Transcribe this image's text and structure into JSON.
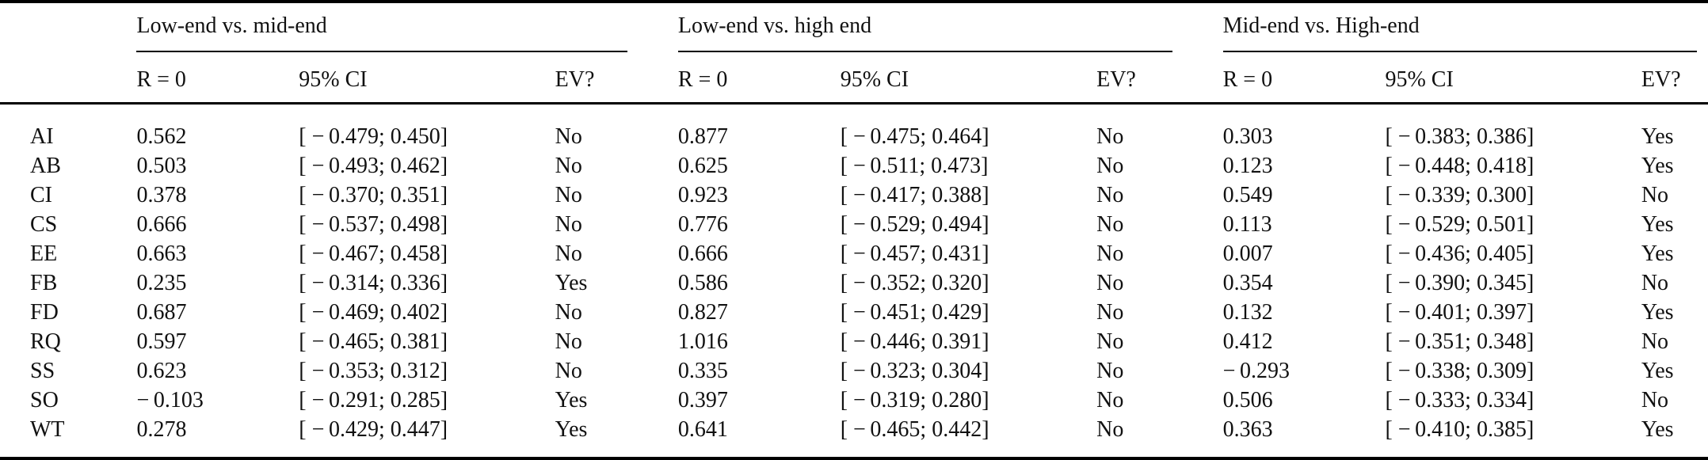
{
  "page": {
    "background_color": "#ffffff",
    "text_color": "#111111",
    "rule_color": "#000000"
  },
  "table": {
    "stub_header": "",
    "groups": [
      {
        "title": "Low-end vs. mid-end",
        "columns": [
          "R = 0",
          "95% CI",
          "EV?"
        ]
      },
      {
        "title": "Low-end vs. high end",
        "columns": [
          "R = 0",
          "95% CI",
          "EV?"
        ]
      },
      {
        "title": "Mid-end vs. High-end",
        "columns": [
          "R = 0",
          "95% CI",
          "EV?"
        ]
      }
    ],
    "rows": [
      {
        "label": "AI",
        "cells": [
          "0.562",
          "[ − 0.479; 0.450]",
          "No",
          "0.877",
          "[ − 0.475; 0.464]",
          "No",
          "0.303",
          "[ − 0.383; 0.386]",
          "Yes"
        ]
      },
      {
        "label": "AB",
        "cells": [
          "0.503",
          "[ − 0.493; 0.462]",
          "No",
          "0.625",
          "[ − 0.511; 0.473]",
          "No",
          "0.123",
          "[ − 0.448; 0.418]",
          "Yes"
        ]
      },
      {
        "label": "CI",
        "cells": [
          "0.378",
          "[ − 0.370; 0.351]",
          "No",
          "0.923",
          "[ − 0.417; 0.388]",
          "No",
          "0.549",
          "[ − 0.339; 0.300]",
          "No"
        ]
      },
      {
        "label": "CS",
        "cells": [
          "0.666",
          "[ − 0.537; 0.498]",
          "No",
          "0.776",
          "[ − 0.529; 0.494]",
          "No",
          "0.113",
          "[ − 0.529; 0.501]",
          "Yes"
        ]
      },
      {
        "label": "EE",
        "cells": [
          "0.663",
          "[ − 0.467; 0.458]",
          "No",
          "0.666",
          "[ − 0.457; 0.431]",
          "No",
          "0.007",
          "[ − 0.436; 0.405]",
          "Yes"
        ]
      },
      {
        "label": "FB",
        "cells": [
          "0.235",
          "[ − 0.314; 0.336]",
          "Yes",
          "0.586",
          "[ − 0.352; 0.320]",
          "No",
          "0.354",
          "[ − 0.390; 0.345]",
          "No"
        ]
      },
      {
        "label": "FD",
        "cells": [
          "0.687",
          "[ − 0.469; 0.402]",
          "No",
          "0.827",
          "[ − 0.451; 0.429]",
          "No",
          "0.132",
          "[ − 0.401; 0.397]",
          "Yes"
        ]
      },
      {
        "label": "RQ",
        "cells": [
          "0.597",
          "[ − 0.465; 0.381]",
          "No",
          "1.016",
          "[ − 0.446; 0.391]",
          "No",
          "0.412",
          "[ − 0.351; 0.348]",
          "No"
        ]
      },
      {
        "label": "SS",
        "cells": [
          "0.623",
          "[ − 0.353; 0.312]",
          "No",
          "0.335",
          "[ − 0.323; 0.304]",
          "No",
          "− 0.293",
          "[ − 0.338; 0.309]",
          "Yes"
        ]
      },
      {
        "label": "SO",
        "cells": [
          "− 0.103",
          "[ − 0.291; 0.285]",
          "Yes",
          "0.397",
          "[ − 0.319; 0.280]",
          "No",
          "0.506",
          "[ − 0.333; 0.334]",
          "No"
        ]
      },
      {
        "label": "WT",
        "cells": [
          "0.278",
          "[ − 0.429; 0.447]",
          "Yes",
          "0.641",
          "[ − 0.465; 0.442]",
          "No",
          "0.363",
          "[ − 0.410; 0.385]",
          "Yes"
        ]
      }
    ]
  }
}
